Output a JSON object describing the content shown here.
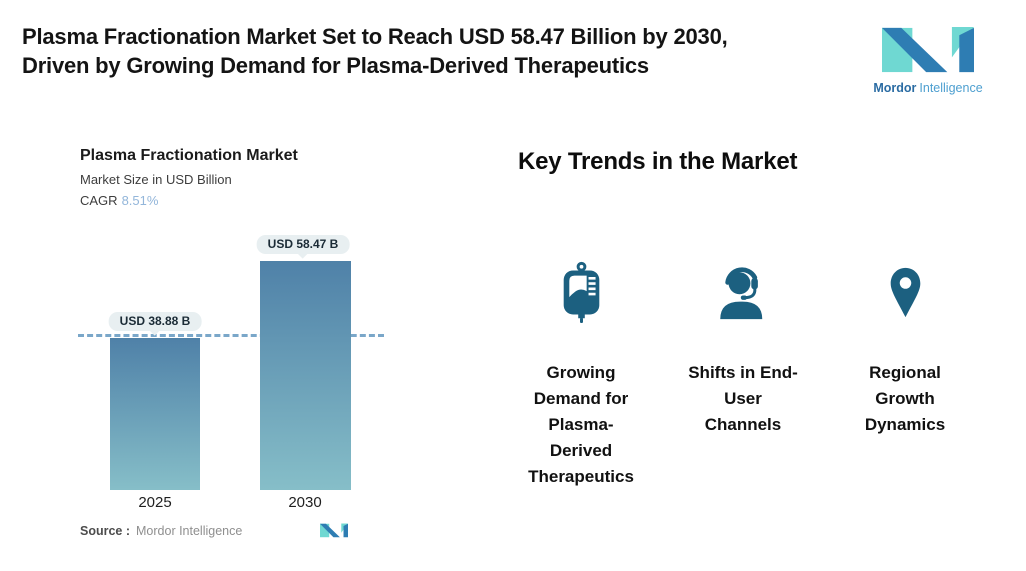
{
  "header": {
    "title_line1": "Plasma Fractionation Market Set to Reach USD 58.47 Billion by 2030,",
    "title_line2": "Driven by Growing Demand for Plasma-Derived Therapeutics",
    "logo": {
      "word1": "Mordor",
      "word2": "Intelligence"
    }
  },
  "chart": {
    "title": "Plasma Fractionation Market",
    "subtitle": "Market Size in USD Billion",
    "cagr_label": "CAGR",
    "cagr_value": "8.51%",
    "bars": [
      {
        "year": "2025",
        "label": "USD 38.88 B"
      },
      {
        "year": "2030",
        "label": "USD 58.47 B"
      }
    ],
    "source_label": "Source :",
    "source_value": "Mordor Intelligence"
  },
  "chart_data": {
    "type": "bar",
    "title": "Plasma Fractionation Market",
    "ylabel": "Market Size in USD Billion",
    "categories": [
      "2025",
      "2030"
    ],
    "values": [
      38.88,
      58.47
    ],
    "data_labels": [
      "USD 38.88 B",
      "USD 58.47 B"
    ],
    "cagr": "8.51%",
    "reference_line_y": 38.88,
    "ylim": [
      0,
      65
    ],
    "grid": false,
    "legend": false,
    "bar_gradient": [
      "#4f81a8",
      "#86bec8"
    ]
  },
  "trends": {
    "heading": "Key Trends in the Market",
    "items": [
      {
        "icon": "blood-bag-icon",
        "label": "Growing\nDemand for\nPlasma-\nDerived\nTherapeutics"
      },
      {
        "icon": "headset-agent-icon",
        "label": "Shifts in End-\nUser\nChannels"
      },
      {
        "icon": "location-pin-icon",
        "label": "Regional\nGrowth\nDynamics"
      }
    ]
  },
  "colors": {
    "icon_teal": "#1c6080",
    "logo_blue": "#2e7db3",
    "logo_teal": "#6fd8d2",
    "bar_top": "#4f81a8",
    "bar_bottom": "#86bec8",
    "dashed_line": "#7aa7c9",
    "pill_bg": "#e8eff1",
    "cagr_value": "#93b6da"
  }
}
